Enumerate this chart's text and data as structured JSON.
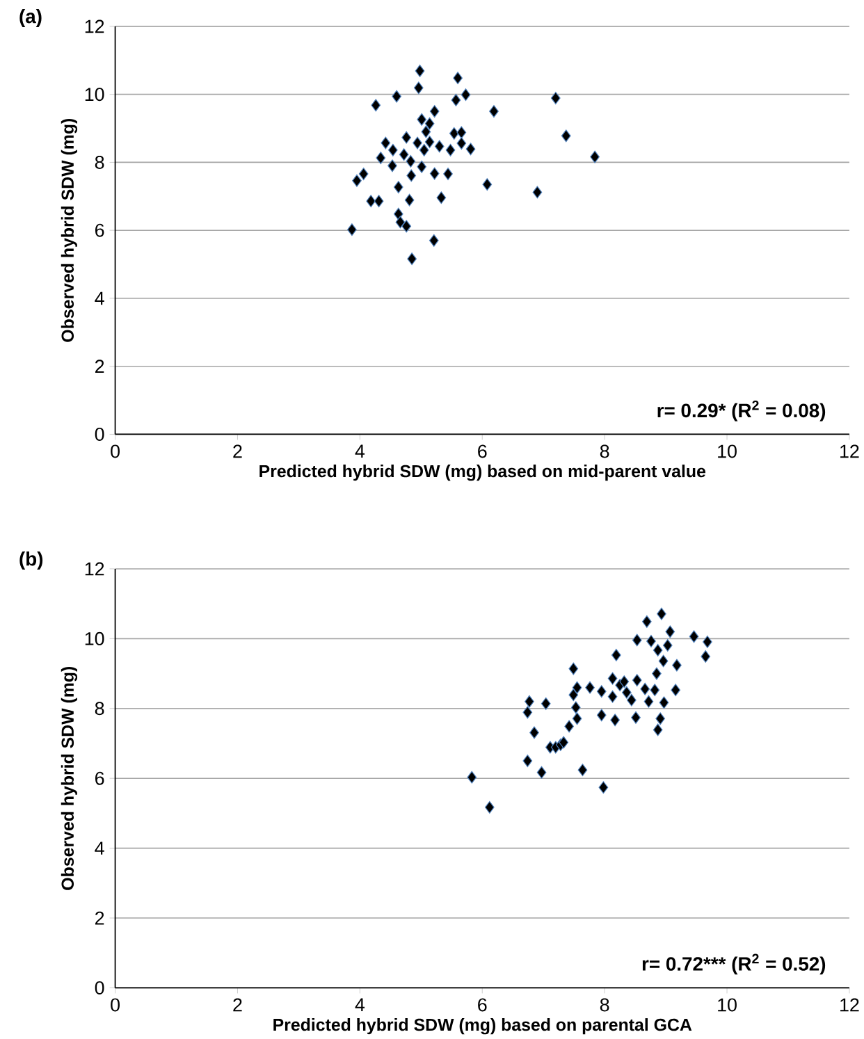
{
  "chart_data": [
    {
      "type": "scatter",
      "title": "(a)",
      "xlabel": "Predicted hybrid SDW (mg) based on mid-parent value",
      "ylabel": "Observed hybrid SDW (mg)",
      "xlim": [
        0,
        12
      ],
      "ylim": [
        0,
        12
      ],
      "xticks": [
        0,
        2,
        4,
        6,
        8,
        10,
        12
      ],
      "yticks": [
        0,
        2,
        4,
        6,
        8,
        10,
        12
      ],
      "grid": "y",
      "marker": "diamond",
      "annotations": [
        "r= 0.29* (R$^{2}$ = 0.08)"
      ],
      "series": [
        {
          "color": "#000000",
          "x": [
            3.87,
            3.95,
            4.06,
            4.18,
            4.31,
            4.26,
            4.34,
            4.42,
            4.53,
            4.54,
            4.6,
            4.63,
            4.63,
            4.66,
            4.76,
            4.72,
            4.76,
            4.81,
            4.83,
            4.84,
            4.85,
            4.94,
            4.98,
            4.96,
            5.01,
            5.01,
            5.05,
            5.08,
            5.14,
            5.14,
            5.22,
            5.21,
            5.22,
            5.3,
            5.33,
            5.44,
            5.48,
            5.6,
            5.57,
            5.54,
            5.66,
            5.66,
            5.73,
            5.81,
            6.08,
            6.19,
            6.9,
            7.2,
            7.37,
            7.84
          ],
          "values": [
            6.02,
            7.46,
            7.66,
            6.86,
            6.86,
            9.68,
            8.13,
            8.57,
            7.9,
            8.36,
            9.94,
            7.27,
            6.48,
            6.24,
            6.12,
            8.23,
            8.73,
            6.89,
            8.03,
            7.61,
            5.16,
            8.57,
            10.69,
            10.19,
            7.87,
            9.26,
            8.36,
            8.9,
            9.14,
            8.6,
            9.5,
            5.7,
            7.67,
            8.47,
            6.96,
            7.66,
            8.36,
            10.48,
            9.83,
            8.85,
            8.88,
            8.56,
            9.99,
            8.39,
            7.35,
            9.5,
            7.12,
            9.89,
            8.78,
            8.16
          ]
        }
      ]
    },
    {
      "type": "scatter",
      "title": "(b)",
      "xlabel": "Predicted hybrid SDW (mg) based on parental GCA",
      "ylabel": "Observed hybrid SDW (mg)",
      "xlim": [
        0,
        12
      ],
      "ylim": [
        0,
        12
      ],
      "xticks": [
        0,
        2,
        4,
        6,
        8,
        10,
        12
      ],
      "yticks": [
        0,
        2,
        4,
        6,
        8,
        10,
        12
      ],
      "grid": "y",
      "marker": "diamond",
      "annotations": [
        "r= 0.72*** (R$^{2}$ = 0.52)"
      ],
      "series": [
        {
          "color": "#000000",
          "x": [
            5.83,
            6.12,
            6.74,
            6.74,
            6.77,
            6.85,
            6.97,
            7.04,
            7.11,
            7.2,
            7.28,
            7.33,
            7.42,
            7.49,
            7.49,
            7.53,
            7.55,
            7.55,
            7.64,
            7.76,
            7.95,
            7.95,
            7.98,
            8.13,
            8.13,
            8.17,
            8.19,
            8.25,
            8.32,
            8.36,
            8.44,
            8.51,
            8.53,
            8.53,
            8.66,
            8.69,
            8.72,
            8.76,
            8.82,
            8.85,
            8.87,
            8.87,
            8.91,
            8.93,
            8.96,
            8.97,
            9.03,
            9.07,
            9.16,
            9.18,
            9.46,
            9.65,
            9.68
          ],
          "values": [
            6.03,
            5.17,
            6.5,
            7.89,
            8.2,
            7.31,
            6.17,
            8.14,
            6.89,
            6.89,
            6.96,
            7.03,
            7.49,
            9.14,
            8.39,
            8.03,
            8.6,
            7.71,
            6.24,
            8.6,
            8.49,
            7.81,
            5.74,
            8.86,
            8.34,
            7.67,
            9.53,
            8.67,
            8.77,
            8.46,
            8.24,
            7.74,
            8.81,
            9.96,
            8.56,
            10.49,
            8.2,
            9.93,
            8.53,
            9.0,
            7.39,
            9.67,
            7.71,
            10.71,
            9.36,
            8.17,
            9.81,
            10.2,
            8.53,
            9.24,
            10.06,
            9.49,
            9.91
          ]
        }
      ]
    }
  ]
}
